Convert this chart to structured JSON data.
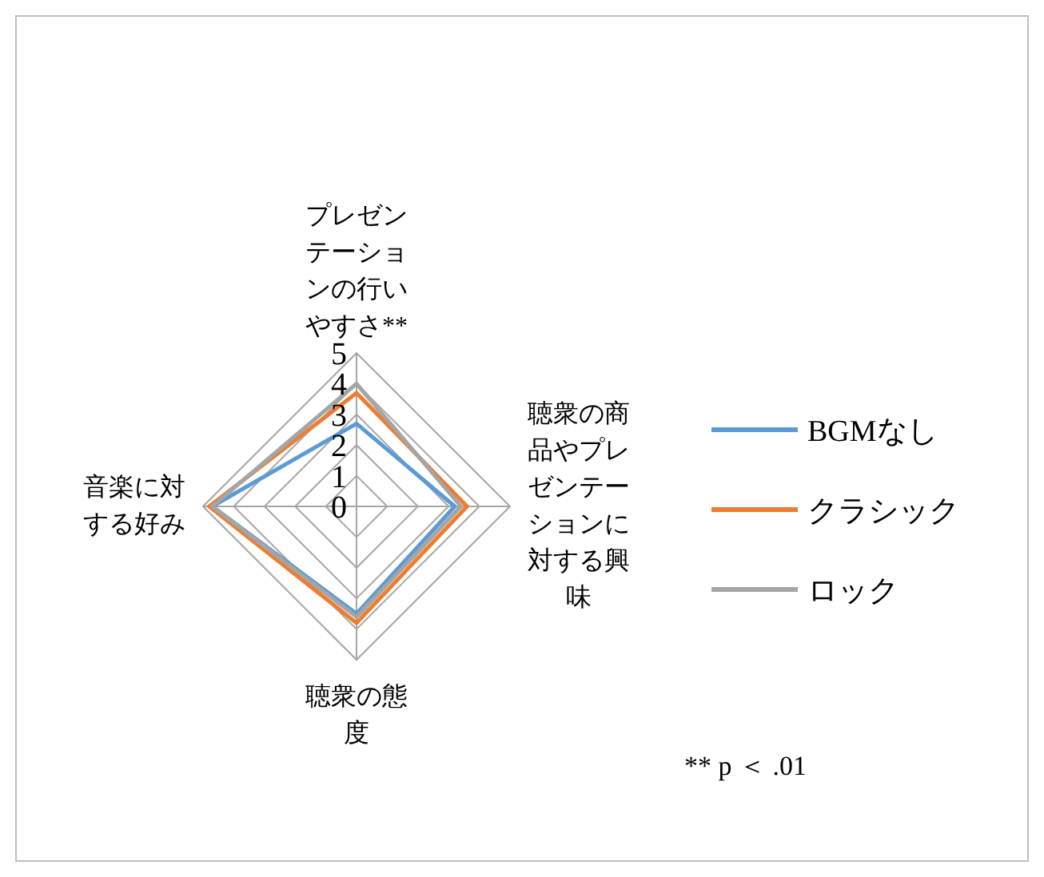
{
  "chart_data": {
    "type": "radar",
    "categories": [
      "プレゼンテーションの行いやすさ**",
      "聴衆の商品やプレゼンテーションに対する興味",
      "聴衆の態度",
      "音楽に対する好み"
    ],
    "series": [
      {
        "name": "BGMなし",
        "color": "#5b9bd5",
        "values": [
          2.7,
          3.2,
          3.5,
          4.7
        ]
      },
      {
        "name": "クラシック",
        "color": "#ed7d31",
        "values": [
          3.7,
          3.6,
          3.8,
          4.8
        ]
      },
      {
        "name": "ロック",
        "color": "#a5a5a5",
        "values": [
          4.0,
          3.4,
          3.6,
          4.7
        ]
      }
    ],
    "ylim": [
      0,
      5
    ],
    "yticks": [
      0,
      1,
      2,
      3,
      4,
      5
    ],
    "grid": true,
    "legend": "right",
    "annotations": [
      "** p ＜ .01"
    ]
  }
}
